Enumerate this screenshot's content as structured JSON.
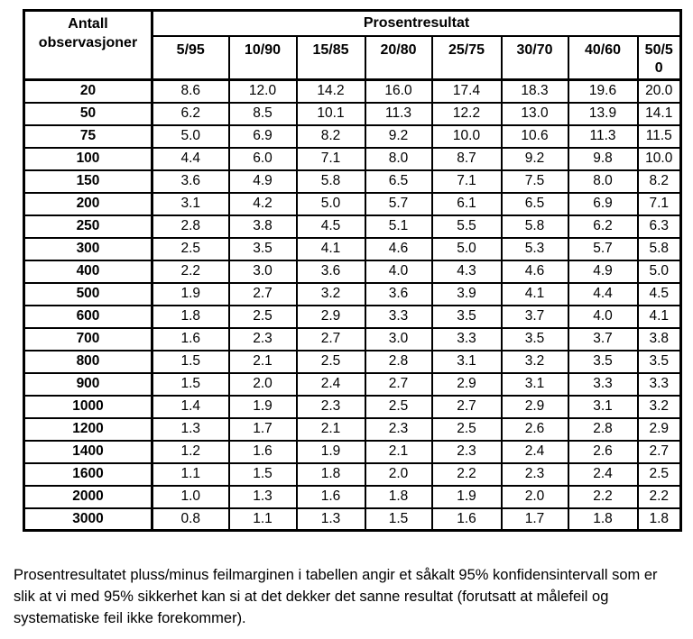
{
  "page": {
    "background_color": "#ffffff",
    "text_color": "#000000",
    "border_color": "#000000"
  },
  "table": {
    "corner_header": "Antall observasjoner",
    "group_header": "Prosentresultat",
    "column_headers": [
      "5/95",
      "10/90",
      "15/85",
      "20/80",
      "25/75",
      "30/70",
      "40/60",
      "50/50"
    ],
    "rows": [
      {
        "label": "20",
        "values": [
          "8.6",
          "12.0",
          "14.2",
          "16.0",
          "17.4",
          "18.3",
          "19.6",
          "20.0"
        ]
      },
      {
        "label": "50",
        "values": [
          "6.2",
          "8.5",
          "10.1",
          "11.3",
          "12.2",
          "13.0",
          "13.9",
          "14.1"
        ]
      },
      {
        "label": "75",
        "values": [
          "5.0",
          "6.9",
          "8.2",
          "9.2",
          "10.0",
          "10.6",
          "11.3",
          "11.5"
        ]
      },
      {
        "label": "100",
        "values": [
          "4.4",
          "6.0",
          "7.1",
          "8.0",
          "8.7",
          "9.2",
          "9.8",
          "10.0"
        ]
      },
      {
        "label": "150",
        "values": [
          "3.6",
          "4.9",
          "5.8",
          "6.5",
          "7.1",
          "7.5",
          "8.0",
          "8.2"
        ]
      },
      {
        "label": "200",
        "values": [
          "3.1",
          "4.2",
          "5.0",
          "5.7",
          "6.1",
          "6.5",
          "6.9",
          "7.1"
        ]
      },
      {
        "label": "250",
        "values": [
          "2.8",
          "3.8",
          "4.5",
          "5.1",
          "5.5",
          "5.8",
          "6.2",
          "6.3"
        ]
      },
      {
        "label": "300",
        "values": [
          "2.5",
          "3.5",
          "4.1",
          "4.6",
          "5.0",
          "5.3",
          "5.7",
          "5.8"
        ]
      },
      {
        "label": "400",
        "values": [
          "2.2",
          "3.0",
          "3.6",
          "4.0",
          "4.3",
          "4.6",
          "4.9",
          "5.0"
        ]
      },
      {
        "label": "500",
        "values": [
          "1.9",
          "2.7",
          "3.2",
          "3.6",
          "3.9",
          "4.1",
          "4.4",
          "4.5"
        ]
      },
      {
        "label": "600",
        "values": [
          "1.8",
          "2.5",
          "2.9",
          "3.3",
          "3.5",
          "3.7",
          "4.0",
          "4.1"
        ]
      },
      {
        "label": "700",
        "values": [
          "1.6",
          "2.3",
          "2.7",
          "3.0",
          "3.3",
          "3.5",
          "3.7",
          "3.8"
        ]
      },
      {
        "label": "800",
        "values": [
          "1.5",
          "2.1",
          "2.5",
          "2.8",
          "3.1",
          "3.2",
          "3.5",
          "3.5"
        ]
      },
      {
        "label": "900",
        "values": [
          "1.5",
          "2.0",
          "2.4",
          "2.7",
          "2.9",
          "3.1",
          "3.3",
          "3.3"
        ]
      },
      {
        "label": "1000",
        "values": [
          "1.4",
          "1.9",
          "2.3",
          "2.5",
          "2.7",
          "2.9",
          "3.1",
          "3.2"
        ]
      },
      {
        "label": "1200",
        "values": [
          "1.3",
          "1.7",
          "2.1",
          "2.3",
          "2.5",
          "2.6",
          "2.8",
          "2.9"
        ]
      },
      {
        "label": "1400",
        "values": [
          "1.2",
          "1.6",
          "1.9",
          "2.1",
          "2.3",
          "2.4",
          "2.6",
          "2.7"
        ]
      },
      {
        "label": "1600",
        "values": [
          "1.1",
          "1.5",
          "1.8",
          "2.0",
          "2.2",
          "2.3",
          "2.4",
          "2.5"
        ]
      },
      {
        "label": "2000",
        "values": [
          "1.0",
          "1.3",
          "1.6",
          "1.8",
          "1.9",
          "2.0",
          "2.2",
          "2.2"
        ]
      },
      {
        "label": "3000",
        "values": [
          "0.8",
          "1.1",
          "1.3",
          "1.5",
          "1.6",
          "1.7",
          "1.8",
          "1.8"
        ]
      }
    ]
  },
  "footnote": {
    "text": "Prosentresultatet pluss/minus feilmarginen i tabellen angir et såkalt 95% konfidensintervall som er slik at vi med 95% sikkerhet kan si at det dekker det sanne resultat (forutsatt at målefeil og systematiske feil ikke forekommer)."
  }
}
